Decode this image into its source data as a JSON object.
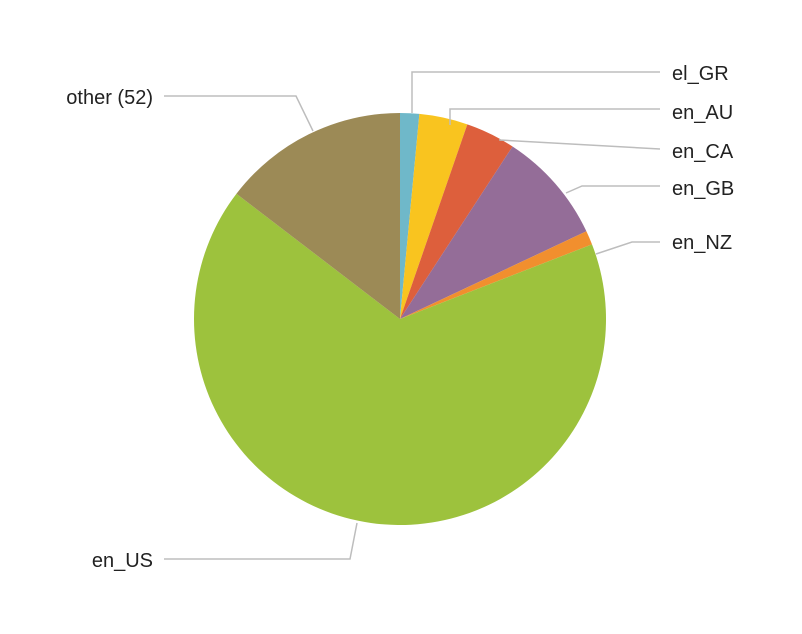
{
  "chart_data": {
    "type": "pie",
    "title": "",
    "start": "12 o'clock, clockwise",
    "slices": [
      {
        "label": "el_GR",
        "value": 1.5,
        "color": "#6fb8c9"
      },
      {
        "label": "en_AU",
        "value": 3.8,
        "color": "#f9c41f"
      },
      {
        "label": "en_CA",
        "value": 3.9,
        "color": "#dd5f3c"
      },
      {
        "label": "en_GB",
        "value": 8.8,
        "color": "#946d98"
      },
      {
        "label": "en_NZ",
        "value": 1.1,
        "color": "#f18f2e"
      },
      {
        "label": "en_US",
        "value": 66.3,
        "color": "#9dc23d"
      },
      {
        "label": "other (52)",
        "value": 14.6,
        "color": "#9c8a56"
      }
    ]
  }
}
